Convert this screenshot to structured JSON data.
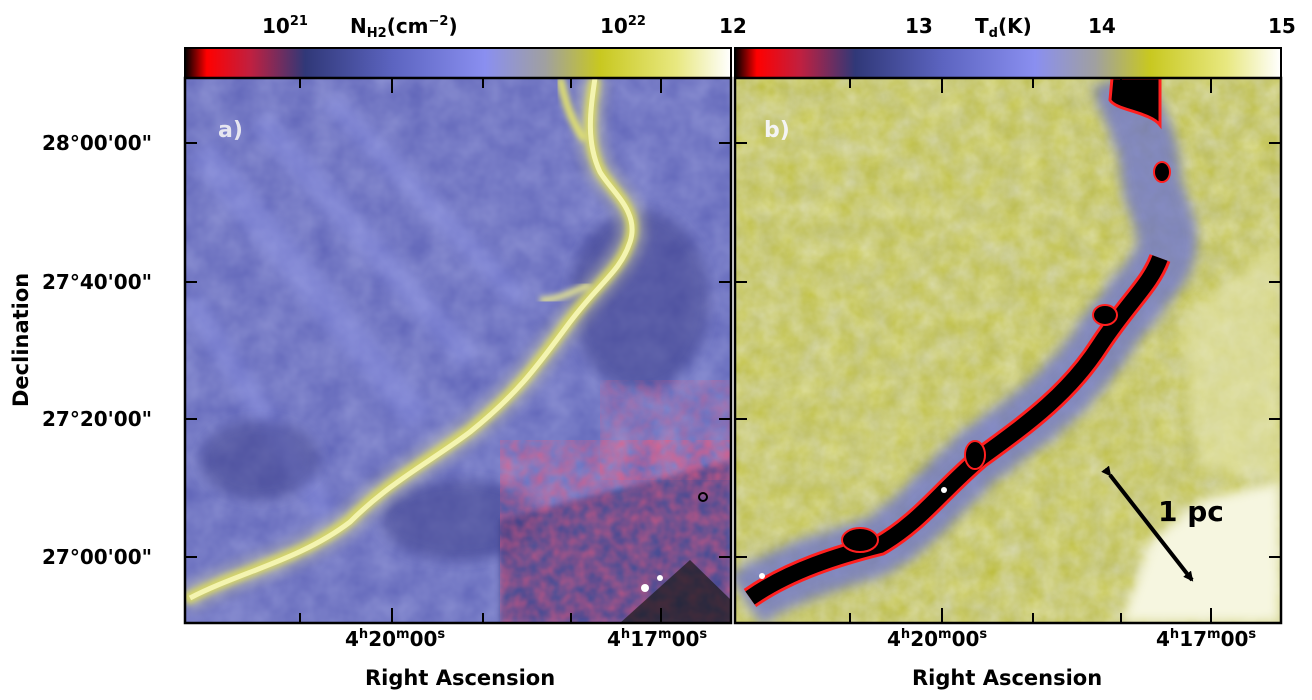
{
  "left_panel": {
    "label": "a)",
    "colorbar": {
      "quantity_main": "N",
      "quantity_sub": "H2",
      "quantity_unit": "(cm",
      "quantity_unit_exp": "−2",
      "quantity_close": ")",
      "tick1_base": "10",
      "tick1_exp": "21",
      "tick2_base": "10",
      "tick2_exp": "22",
      "colormap": [
        "#000000",
        "#ff0000",
        "#c02040",
        "#303878",
        "#5c64c0",
        "#8a8ff0",
        "#a0a0a0",
        "#c8c820",
        "#e8e880",
        "#ffffff"
      ]
    }
  },
  "right_panel": {
    "label": "b)",
    "colorbar": {
      "ticks": [
        "12",
        "13",
        "14",
        "15"
      ],
      "quantity_main": "T",
      "quantity_sub": "d",
      "quantity_close": "(K)",
      "colormap": [
        "#000000",
        "#ff0000",
        "#c02040",
        "#303878",
        "#5c64c0",
        "#8a8ff0",
        "#a0a0a0",
        "#c8c820",
        "#e8e880",
        "#ffffff"
      ]
    },
    "scale_bar": "1 pc"
  },
  "y_axis": {
    "title": "Declination",
    "ticks": [
      "28°00'00\"",
      "27°40'00\"",
      "27°20'00\"",
      "27°00'00\""
    ]
  },
  "x_axis": {
    "title_left": "Right Ascension",
    "title_right": "Right Ascension",
    "ticks_left": [
      {
        "h": "4",
        "m": "20",
        "s": "00"
      },
      {
        "h": "4",
        "m": "17",
        "s": "00"
      }
    ],
    "ticks_right": [
      {
        "h": "4",
        "m": "20",
        "s": "00"
      },
      {
        "h": "4",
        "m": "17",
        "s": "00"
      }
    ]
  },
  "colors": {
    "background_blue": "#5f64b8",
    "filament_yellow": "#e8e880",
    "cold_black": "#000000",
    "cold_edge_red": "#ff1a1a",
    "warm_yellow": "#c8c828",
    "warm_white": "#fafae0"
  }
}
